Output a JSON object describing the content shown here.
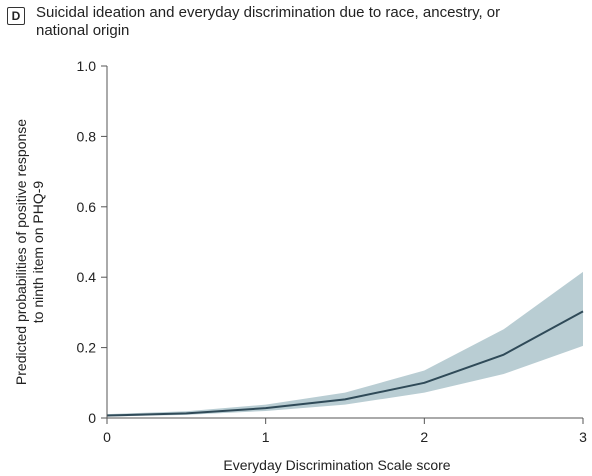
{
  "panel": {
    "letter": "D",
    "title": "Suicidal ideation and everyday discrimination due to race, ancestry, or national origin"
  },
  "chart_data": {
    "type": "line",
    "title": "Suicidal ideation and everyday discrimination due to race, ancestry, or national origin",
    "xlabel": "Everyday Discrimination Scale score",
    "ylabel_lines": [
      "Predicted probabilities of positive response",
      "to ninth item on PHQ-9"
    ],
    "xlim": [
      0,
      3
    ],
    "ylim": [
      0,
      1.0
    ],
    "x_ticks": [
      0,
      1,
      2,
      3
    ],
    "x_tick_labels": [
      "0",
      "1",
      "2",
      "3"
    ],
    "y_ticks": [
      0,
      0.2,
      0.4,
      0.6,
      0.8,
      1.0
    ],
    "y_tick_labels": [
      "0",
      "0.2",
      "0.4",
      "0.6",
      "0.8",
      "1.0"
    ],
    "grid": false,
    "series": [
      {
        "x": [
          0,
          0.5,
          1,
          1.5,
          2,
          2.5,
          3
        ],
        "y": [
          0.007,
          0.013,
          0.028,
          0.053,
          0.1,
          0.18,
          0.303
        ],
        "ci_lower": [
          0.004,
          0.009,
          0.02,
          0.038,
          0.072,
          0.125,
          0.205
        ],
        "ci_upper": [
          0.011,
          0.019,
          0.038,
          0.072,
          0.135,
          0.252,
          0.415
        ],
        "line_color": "#2f4a58",
        "band_color": "#b9cdd3"
      }
    ]
  }
}
